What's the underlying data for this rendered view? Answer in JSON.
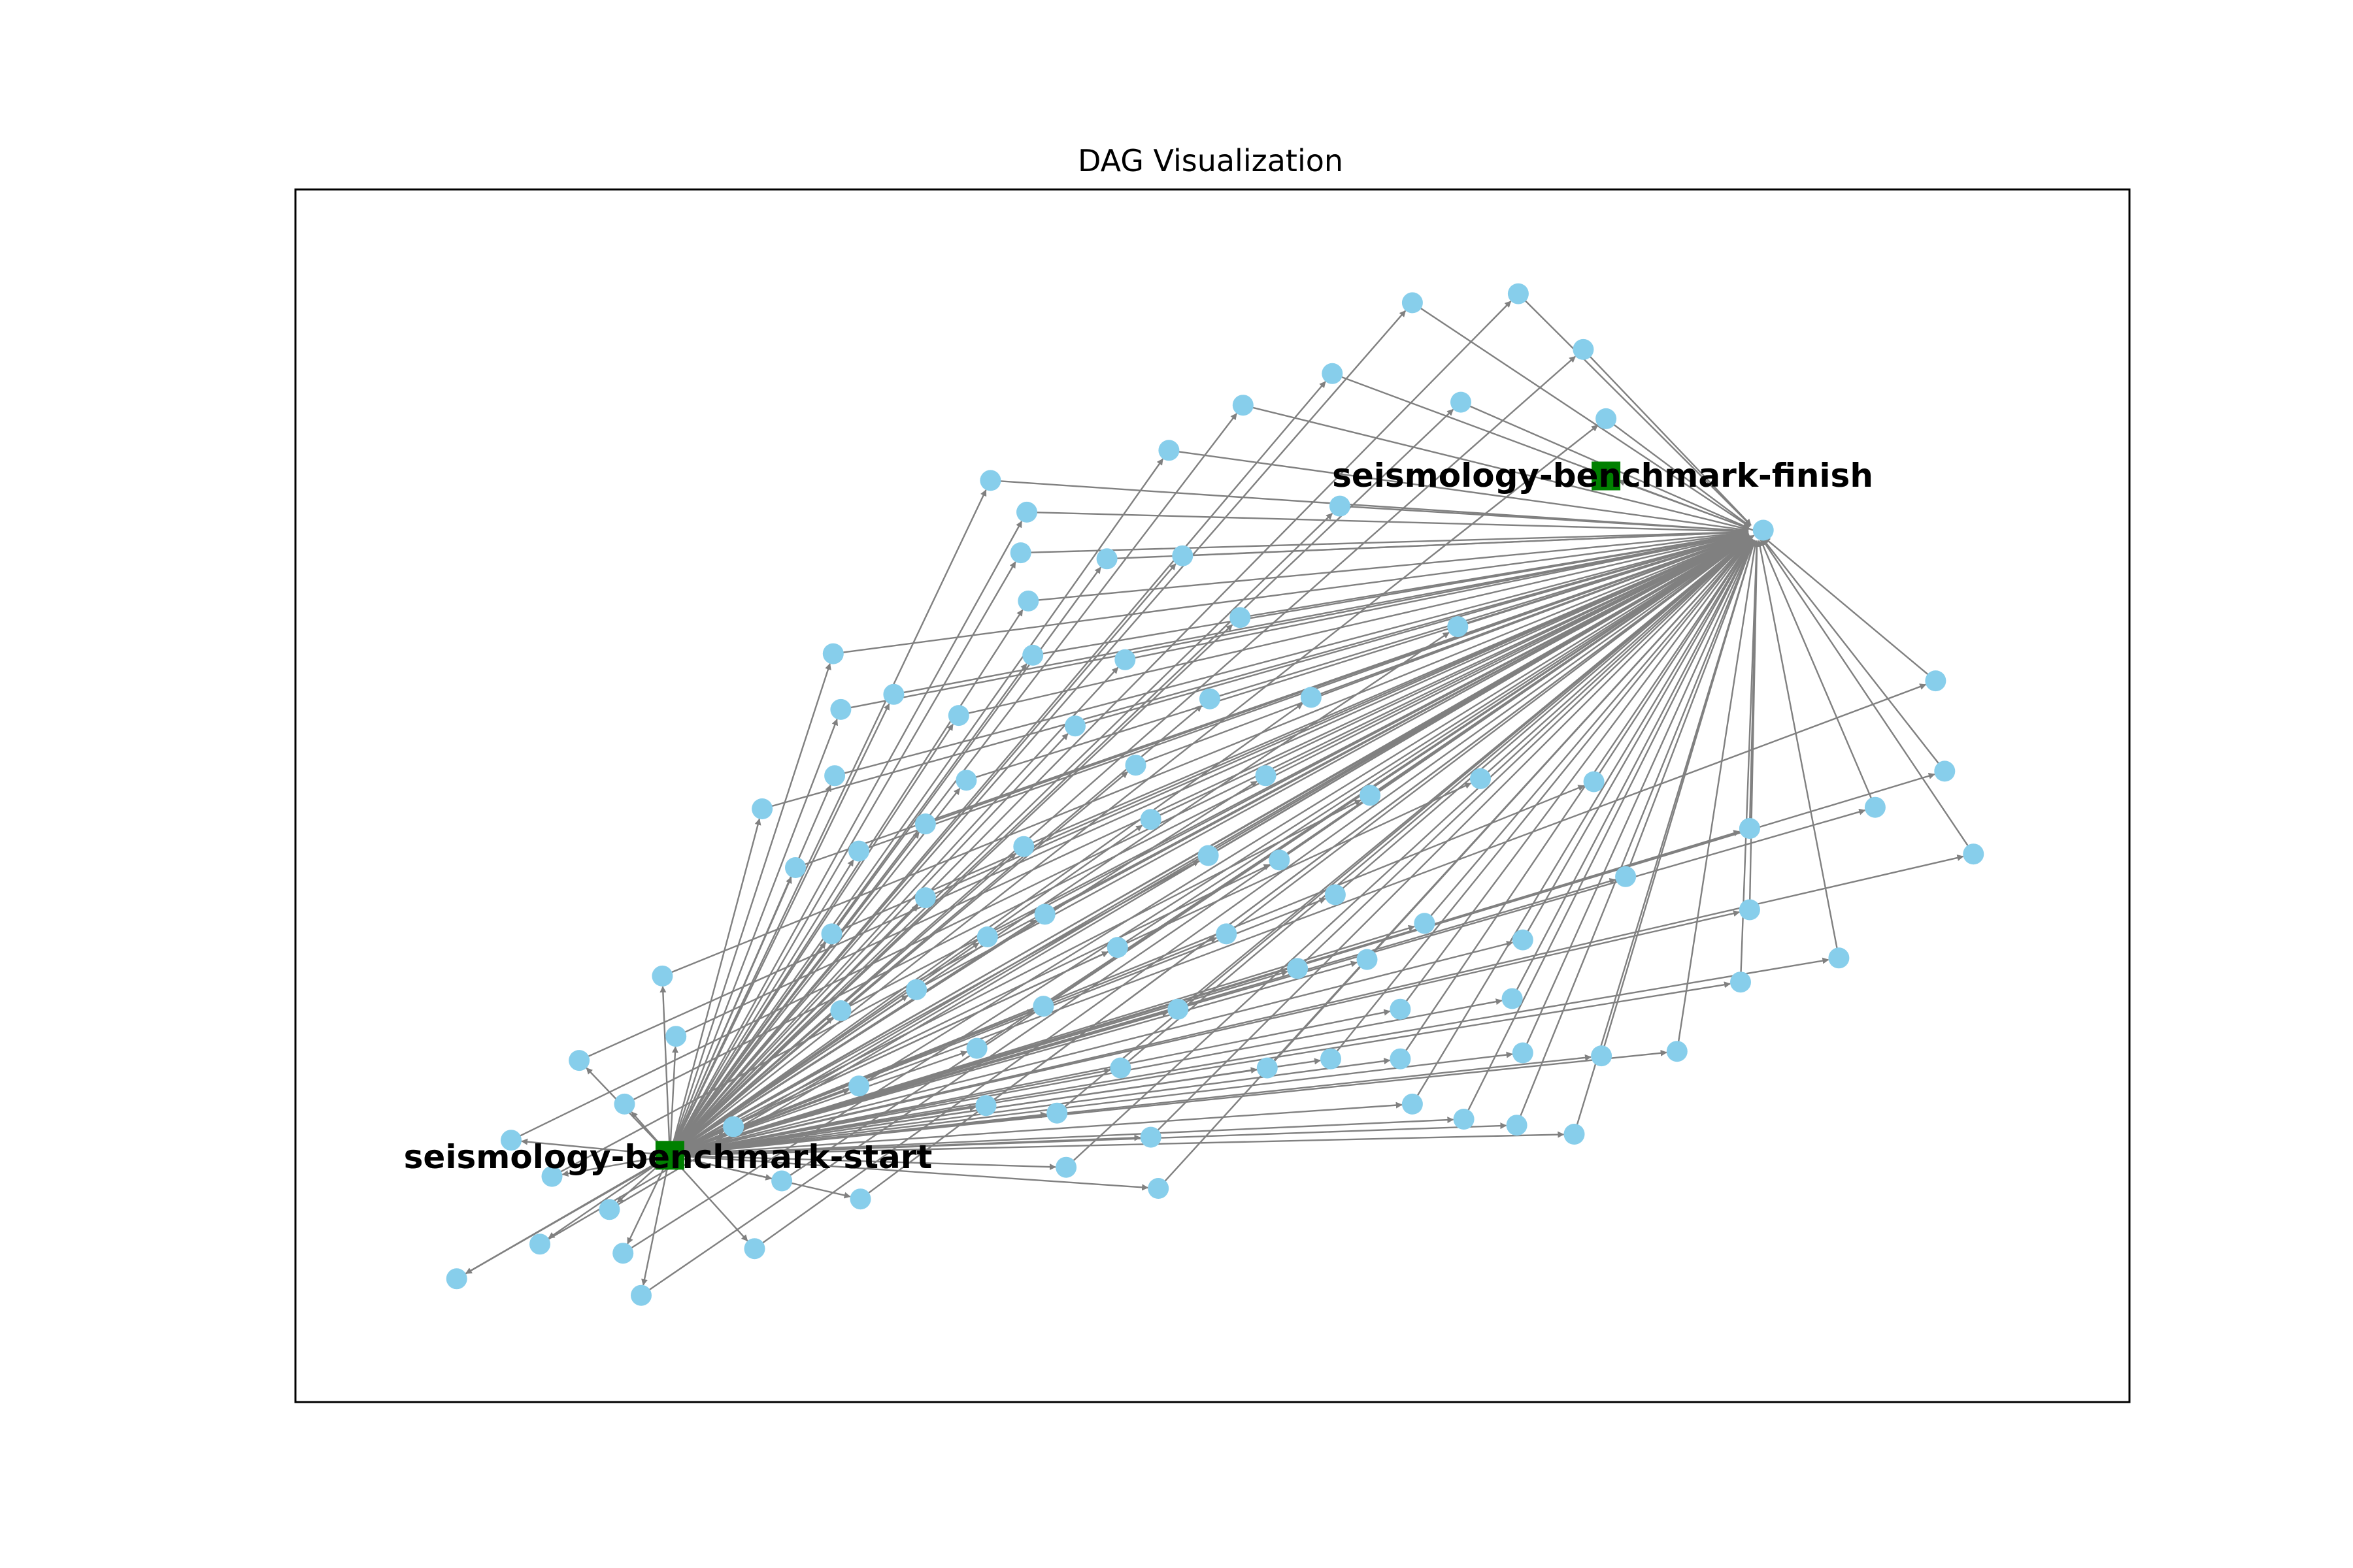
{
  "title": "DAG Visualization",
  "colors": {
    "task_node": "#87ceeb",
    "terminal_node": "#008000",
    "edge": "#808080",
    "frame": "#000000"
  },
  "terminal_nodes": {
    "start": {
      "label": "seismology-benchmark-start",
      "shape": "square"
    },
    "finish": {
      "label": "seismology-benchmark-finish",
      "shape": "square"
    }
  },
  "task_node_count": 113
}
